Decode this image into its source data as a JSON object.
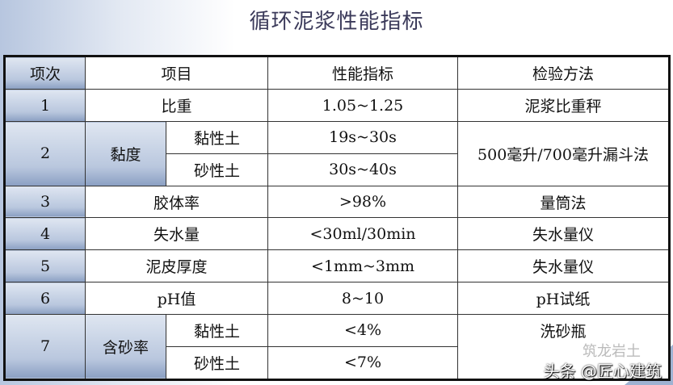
{
  "title": "循环泥浆性能指标",
  "headers": [
    "项次",
    "项目",
    "性能指标",
    "检验方法"
  ],
  "rows": {
    "r1": {
      "no": "1",
      "item": "比重",
      "value": "1.05~1.25",
      "method": "泥浆比重秤"
    },
    "r2": {
      "no": "2",
      "item": "黏度",
      "sub1": "黏性土",
      "v1": "19s~30s",
      "sub2": "砂性土",
      "v2": "30s~40s",
      "method": "500毫升/700毫升漏斗法"
    },
    "r3": {
      "no": "3",
      "item": "胶体率",
      "value": ">98%",
      "method": "量筒法"
    },
    "r4": {
      "no": "4",
      "item": "失水量",
      "value": "<30ml/30min",
      "method": "失水量仪"
    },
    "r5": {
      "no": "5",
      "item": "泥皮厚度",
      "value": "<1mm~3mm",
      "method": "失水量仪"
    },
    "r6": {
      "no": "6",
      "item": "pH值",
      "value": "8~10",
      "method": "pH试纸"
    },
    "r7": {
      "no": "7",
      "item": "含砂率",
      "sub1": "黏性土",
      "v1": "<4%",
      "sub2": "砂性土",
      "v2": "<7%",
      "method": "洗砂瓶"
    }
  },
  "watermark": "头条 @匠心建筑",
  "watermark_faint": "筑龙岩土"
}
